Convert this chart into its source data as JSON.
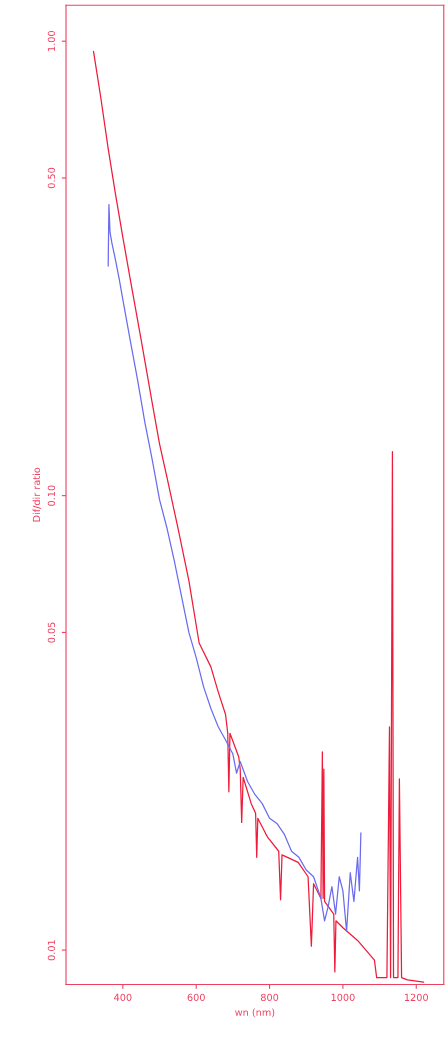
{
  "chart_data": {
    "type": "line",
    "xlabel": "wn (nm)",
    "ylabel": "Dif/dir ratio",
    "log": "y",
    "grid": false,
    "legend": false,
    "marker": "none",
    "line_style": "solid",
    "xlim": [
      245,
      1275
    ],
    "xticks": [
      400,
      600,
      800,
      1000,
      1200
    ],
    "ylim": [
      0.0084,
      1.2
    ],
    "yticks": [
      {
        "value": 1.0,
        "label": "1.00"
      },
      {
        "value": 0.5,
        "label": "0.50"
      },
      {
        "value": 0.1,
        "label": "0.10"
      },
      0.05,
      0.01
    ],
    "series": [
      {
        "color": "#ee1b3a",
        "x": [
          320,
          340,
          360,
          380,
          400,
          420,
          450,
          480,
          500,
          520,
          550,
          580,
          608,
          640,
          660,
          680,
          686,
          689,
          692,
          716,
          720,
          724,
          728,
          750,
          762,
          765,
          768,
          790,
          797,
          800,
          825,
          830,
          834,
          878,
          905,
          914,
          920,
          940,
          944,
          946,
          948,
          950,
          975,
          978,
          981,
          1000,
          1040,
          1086,
          1092,
          1120,
          1127,
          1130,
          1135,
          1138,
          1150,
          1154,
          1160,
          1176,
          1220
        ],
        "values": [
          0.95,
          0.75,
          0.58,
          0.46,
          0.37,
          0.3,
          0.22,
          0.16,
          0.13,
          0.11,
          0.085,
          0.065,
          0.0474,
          0.042,
          0.037,
          0.033,
          0.03,
          0.0223,
          0.03,
          0.0266,
          0.025,
          0.0191,
          0.024,
          0.021,
          0.02,
          0.016,
          0.0195,
          0.018,
          0.0176,
          0.0175,
          0.0165,
          0.0129,
          0.0162,
          0.0156,
          0.0145,
          0.0102,
          0.014,
          0.013,
          0.0273,
          0.013,
          0.025,
          0.0128,
          0.012,
          0.00895,
          0.0116,
          0.0112,
          0.0105,
          0.0095,
          0.0087,
          0.0087,
          0.031,
          0.0087,
          0.125,
          0.0087,
          0.0087,
          0.0238,
          0.0087,
          0.0086,
          0.0085
        ]
      },
      {
        "color": "#6b6bf0",
        "x": [
          360,
          362,
          365,
          370,
          380,
          390,
          400,
          420,
          440,
          460,
          480,
          500,
          520,
          540,
          560,
          580,
          600,
          620,
          640,
          660,
          680,
          700,
          710,
          720,
          740,
          760,
          780,
          800,
          820,
          840,
          860,
          880,
          900,
          920,
          940,
          950,
          960,
          970,
          980,
          990,
          1000,
          1010,
          1020,
          1030,
          1040,
          1045,
          1049
        ],
        "values": [
          0.32,
          0.437,
          0.38,
          0.36,
          0.33,
          0.3,
          0.27,
          0.22,
          0.18,
          0.145,
          0.12,
          0.098,
          0.085,
          0.072,
          0.06,
          0.05,
          0.044,
          0.038,
          0.034,
          0.031,
          0.029,
          0.027,
          0.0245,
          0.026,
          0.0235,
          0.022,
          0.021,
          0.0195,
          0.019,
          0.018,
          0.0165,
          0.016,
          0.015,
          0.0145,
          0.013,
          0.0116,
          0.0125,
          0.0138,
          0.012,
          0.0145,
          0.0135,
          0.011,
          0.0148,
          0.0128,
          0.016,
          0.0135,
          0.0181
        ]
      }
    ]
  }
}
